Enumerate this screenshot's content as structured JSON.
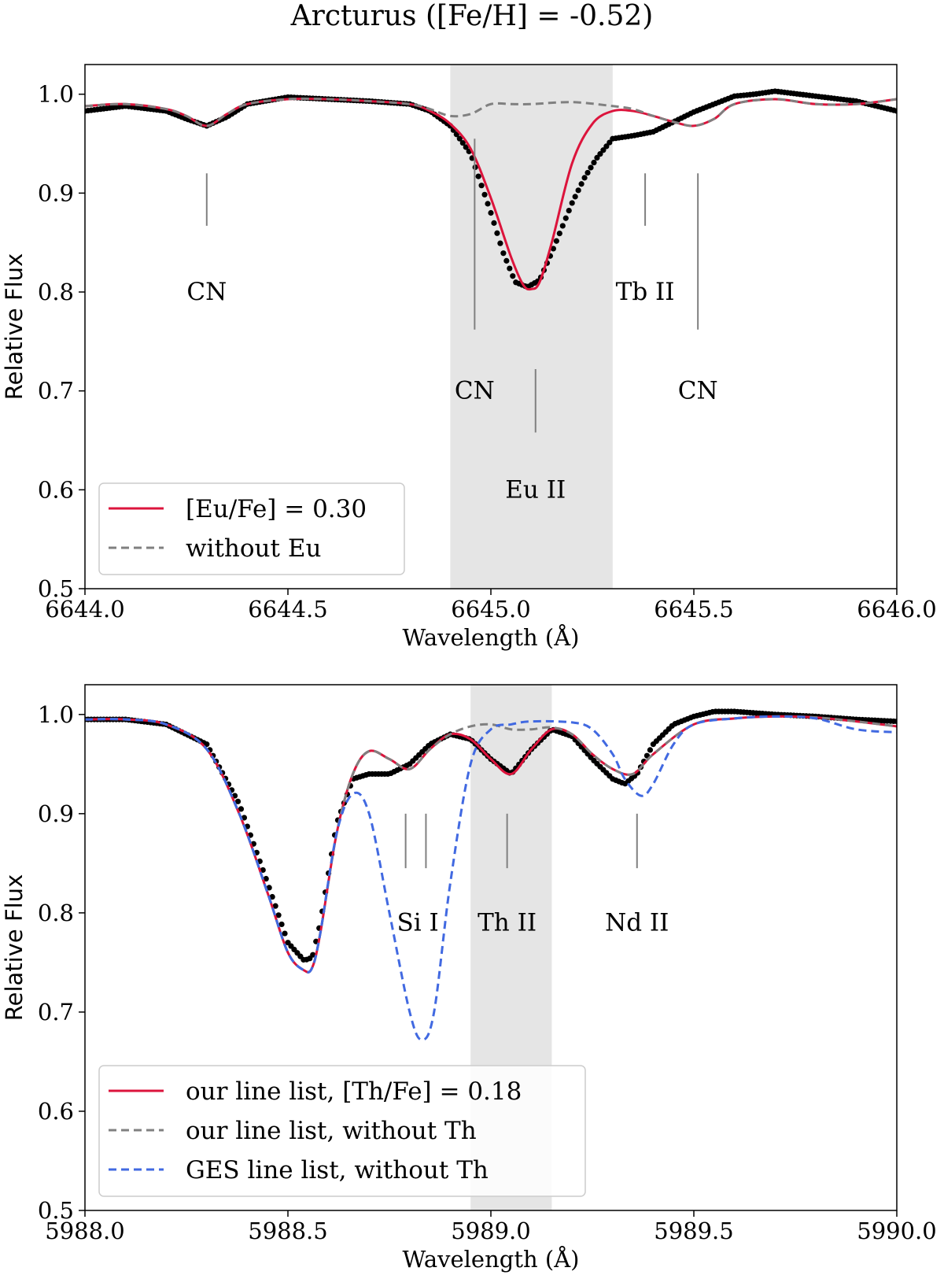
{
  "title": "Arcturus ([Fe/H] = -0.52)",
  "colors": {
    "red": "#dc143c",
    "gray": "#808080",
    "blue": "#4169e1",
    "obs": "#000000",
    "shade": "#d3d3d3"
  },
  "chart_data": [
    {
      "type": "line",
      "xlabel": "Wavelength (Å)",
      "ylabel": "Relative Flux",
      "xlim": [
        6644.0,
        6646.0
      ],
      "ylim": [
        0.5,
        1.03
      ],
      "xticks": [
        "6644.0",
        "6644.5",
        "6645.0",
        "6645.5",
        "6646.0"
      ],
      "yticks": [
        "0.5",
        "0.6",
        "0.7",
        "0.8",
        "0.9",
        "1.0"
      ],
      "shaded_region": [
        6644.9,
        6645.3
      ],
      "annotations": [
        {
          "label": "CN",
          "x": 6644.3,
          "line_y": [
            0.867,
            0.92
          ],
          "text_y": 0.8
        },
        {
          "label": "CN",
          "x": 6644.96,
          "line_y": [
            0.762,
            0.955
          ],
          "text_y": 0.7
        },
        {
          "label": "Eu II",
          "x": 6645.11,
          "line_y": [
            0.658,
            0.722
          ],
          "text_y": 0.6
        },
        {
          "label": "Tb II",
          "x": 6645.38,
          "line_y": [
            0.867,
            0.92
          ],
          "text_y": 0.8
        },
        {
          "label": "CN",
          "x": 6645.51,
          "line_y": [
            0.762,
            0.92
          ],
          "text_y": 0.7
        }
      ],
      "series": [
        {
          "name": "[Eu/Fe] = 0.30",
          "style": "solid",
          "color": "red",
          "x": [
            6644.0,
            6644.1,
            6644.2,
            6644.25,
            6644.3,
            6644.35,
            6644.4,
            6644.5,
            6644.6,
            6644.7,
            6644.8,
            6644.85,
            6644.9,
            6644.95,
            6645.0,
            6645.05,
            6645.08,
            6645.1,
            6645.12,
            6645.15,
            6645.2,
            6645.25,
            6645.3,
            6645.35,
            6645.4,
            6645.45,
            6645.5,
            6645.55,
            6645.6,
            6645.7,
            6645.8,
            6645.9,
            6646.0
          ],
          "y": [
            0.988,
            0.99,
            0.985,
            0.978,
            0.968,
            0.98,
            0.99,
            0.995,
            0.995,
            0.993,
            0.99,
            0.983,
            0.97,
            0.945,
            0.895,
            0.835,
            0.807,
            0.803,
            0.81,
            0.85,
            0.93,
            0.97,
            0.983,
            0.983,
            0.978,
            0.972,
            0.968,
            0.975,
            0.99,
            0.995,
            0.99,
            0.99,
            0.995
          ]
        },
        {
          "name": "without Eu",
          "style": "dashed",
          "color": "gray",
          "x": [
            6644.0,
            6644.1,
            6644.2,
            6644.25,
            6644.3,
            6644.35,
            6644.4,
            6644.5,
            6644.6,
            6644.7,
            6644.8,
            6644.85,
            6644.9,
            6644.95,
            6645.0,
            6645.05,
            6645.1,
            6645.2,
            6645.3,
            6645.35,
            6645.4,
            6645.45,
            6645.5,
            6645.55,
            6645.6,
            6645.7,
            6645.8,
            6645.9,
            6646.0
          ],
          "y": [
            0.988,
            0.99,
            0.985,
            0.978,
            0.968,
            0.98,
            0.99,
            0.995,
            0.995,
            0.993,
            0.99,
            0.985,
            0.978,
            0.98,
            0.99,
            0.99,
            0.99,
            0.992,
            0.988,
            0.985,
            0.978,
            0.972,
            0.968,
            0.975,
            0.99,
            0.995,
            0.99,
            0.99,
            0.995
          ]
        },
        {
          "name": "observed",
          "style": "dots",
          "color": "obs",
          "x": [
            6644.0,
            6644.1,
            6644.2,
            6644.25,
            6644.3,
            6644.35,
            6644.4,
            6644.5,
            6644.6,
            6644.7,
            6644.8,
            6644.85,
            6644.9,
            6644.95,
            6645.0,
            6645.03,
            6645.06,
            6645.09,
            6645.12,
            6645.15,
            6645.18,
            6645.2,
            6645.23,
            6645.26,
            6645.3,
            6645.35,
            6645.4,
            6645.45,
            6645.5,
            6645.55,
            6645.6,
            6645.65,
            6645.7,
            6645.8,
            6645.9,
            6646.0
          ],
          "y": [
            0.983,
            0.988,
            0.983,
            0.975,
            0.968,
            0.977,
            0.99,
            0.997,
            0.995,
            0.993,
            0.99,
            0.983,
            0.968,
            0.94,
            0.88,
            0.84,
            0.81,
            0.805,
            0.812,
            0.84,
            0.87,
            0.89,
            0.915,
            0.935,
            0.955,
            0.958,
            0.962,
            0.972,
            0.982,
            0.99,
            0.998,
            1.0,
            1.003,
            0.998,
            0.993,
            0.983
          ]
        }
      ],
      "legend": {
        "placement": "lower-left",
        "entries": [
          "[Eu/Fe] = 0.30",
          "without Eu"
        ]
      }
    },
    {
      "type": "line",
      "xlabel": "Wavelength (Å)",
      "ylabel": "Relative Flux",
      "xlim": [
        5988.0,
        5990.0
      ],
      "ylim": [
        0.5,
        1.03
      ],
      "xticks": [
        "5988.0",
        "5988.5",
        "5989.0",
        "5989.5",
        "5990.0"
      ],
      "yticks": [
        "0.5",
        "0.6",
        "0.7",
        "0.8",
        "0.9",
        "1.0"
      ],
      "shaded_region": [
        5988.95,
        5989.15
      ],
      "annotations": [
        {
          "label": "Si I",
          "x": 5988.82,
          "lines_x": [
            5988.79,
            5988.84
          ],
          "line_y": [
            0.845,
            0.9
          ],
          "text_y": 0.79
        },
        {
          "label": "Th II",
          "x": 5989.04,
          "lines_x": [
            5989.04
          ],
          "line_y": [
            0.845,
            0.9
          ],
          "text_y": 0.79
        },
        {
          "label": "Nd II",
          "x": 5989.36,
          "lines_x": [
            5989.36
          ],
          "line_y": [
            0.845,
            0.9
          ],
          "text_y": 0.79
        }
      ],
      "series": [
        {
          "name": "our line list, [Th/Fe] = 0.18",
          "style": "solid",
          "color": "red",
          "x": [
            5988.0,
            5988.1,
            5988.2,
            5988.3,
            5988.38,
            5988.45,
            5988.5,
            5988.54,
            5988.56,
            5988.58,
            5988.62,
            5988.66,
            5988.7,
            5988.75,
            5988.8,
            5988.85,
            5988.9,
            5988.95,
            5989.0,
            5989.05,
            5989.1,
            5989.15,
            5989.2,
            5989.25,
            5989.3,
            5989.35,
            5989.4,
            5989.5,
            5989.6,
            5989.7,
            5989.8,
            5989.9,
            5990.0
          ],
          "y": [
            0.995,
            0.995,
            0.99,
            0.965,
            0.9,
            0.82,
            0.76,
            0.742,
            0.745,
            0.78,
            0.88,
            0.94,
            0.963,
            0.955,
            0.945,
            0.965,
            0.98,
            0.975,
            0.955,
            0.94,
            0.965,
            0.985,
            0.98,
            0.96,
            0.945,
            0.94,
            0.96,
            0.99,
            0.996,
            0.998,
            0.997,
            0.993,
            0.988
          ]
        },
        {
          "name": "our line list, without Th",
          "style": "dashed",
          "color": "gray",
          "x": [
            5988.0,
            5988.1,
            5988.2,
            5988.3,
            5988.38,
            5988.45,
            5988.5,
            5988.54,
            5988.56,
            5988.58,
            5988.62,
            5988.66,
            5988.7,
            5988.75,
            5988.8,
            5988.85,
            5988.9,
            5988.95,
            5989.0,
            5989.05,
            5989.1,
            5989.15,
            5989.2,
            5989.25,
            5989.3,
            5989.35,
            5989.4,
            5989.5,
            5989.6,
            5989.7,
            5989.8,
            5989.9,
            5990.0
          ],
          "y": [
            0.995,
            0.995,
            0.99,
            0.965,
            0.9,
            0.82,
            0.76,
            0.742,
            0.745,
            0.78,
            0.88,
            0.94,
            0.963,
            0.955,
            0.945,
            0.965,
            0.98,
            0.988,
            0.99,
            0.985,
            0.985,
            0.987,
            0.98,
            0.96,
            0.945,
            0.94,
            0.96,
            0.99,
            0.996,
            0.998,
            0.997,
            0.993,
            0.988
          ]
        },
        {
          "name": "GES line list, without Th",
          "style": "dashed",
          "color": "blue",
          "x": [
            5988.0,
            5988.1,
            5988.2,
            5988.3,
            5988.38,
            5988.45,
            5988.5,
            5988.54,
            5988.56,
            5988.58,
            5988.62,
            5988.66,
            5988.7,
            5988.75,
            5988.8,
            5988.83,
            5988.86,
            5988.9,
            5988.95,
            5989.0,
            5989.05,
            5989.1,
            5989.2,
            5989.25,
            5989.3,
            5989.33,
            5989.37,
            5989.4,
            5989.45,
            5989.5,
            5989.6,
            5989.7,
            5989.8,
            5989.9,
            5990.0
          ],
          "y": [
            0.995,
            0.995,
            0.99,
            0.965,
            0.9,
            0.82,
            0.76,
            0.742,
            0.745,
            0.78,
            0.88,
            0.92,
            0.9,
            0.8,
            0.7,
            0.672,
            0.7,
            0.83,
            0.95,
            0.985,
            0.99,
            0.993,
            0.992,
            0.985,
            0.96,
            0.935,
            0.918,
            0.93,
            0.97,
            0.99,
            0.996,
            0.998,
            0.996,
            0.985,
            0.982
          ]
        },
        {
          "name": "observed",
          "style": "dots",
          "color": "obs",
          "x": [
            5988.0,
            5988.1,
            5988.2,
            5988.3,
            5988.38,
            5988.45,
            5988.5,
            5988.54,
            5988.56,
            5988.58,
            5988.62,
            5988.66,
            5988.7,
            5988.75,
            5988.8,
            5988.85,
            5988.9,
            5988.95,
            5989.0,
            5989.05,
            5989.1,
            5989.15,
            5989.2,
            5989.25,
            5989.3,
            5989.33,
            5989.36,
            5989.4,
            5989.45,
            5989.5,
            5989.55,
            5989.6,
            5989.7,
            5989.8,
            5989.9,
            5990.0
          ],
          "y": [
            0.995,
            0.995,
            0.99,
            0.97,
            0.91,
            0.83,
            0.77,
            0.752,
            0.755,
            0.79,
            0.89,
            0.935,
            0.94,
            0.94,
            0.95,
            0.97,
            0.98,
            0.975,
            0.955,
            0.94,
            0.965,
            0.985,
            0.978,
            0.955,
            0.935,
            0.93,
            0.94,
            0.97,
            0.99,
            0.998,
            1.003,
            1.003,
            1.0,
            0.998,
            0.995,
            0.993
          ]
        }
      ],
      "legend": {
        "placement": "lower-left",
        "entries": [
          "our line list, [Th/Fe] = 0.18",
          "our line list, without Th",
          "GES line list, without Th"
        ]
      }
    }
  ]
}
